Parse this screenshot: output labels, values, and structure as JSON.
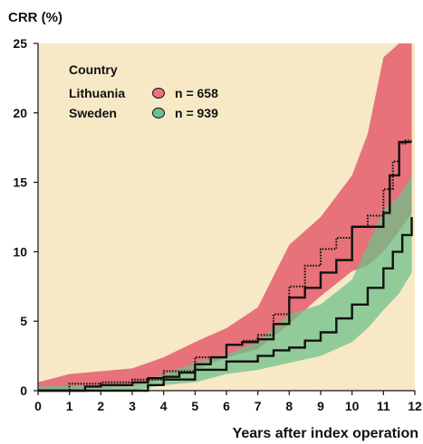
{
  "chart_data": {
    "type": "line",
    "title": "",
    "ylabel": "CRR (%)",
    "xlabel": "Years after index operation",
    "xlim": [
      0,
      12
    ],
    "ylim": [
      0,
      25
    ],
    "x_ticks": [
      0,
      1,
      2,
      3,
      4,
      5,
      6,
      7,
      8,
      9,
      10,
      11,
      12
    ],
    "y_ticks": [
      0,
      5,
      10,
      15,
      20,
      25
    ],
    "grid": false,
    "legend": {
      "title": "Country",
      "placement": "top-left",
      "entries": [
        {
          "label": "Lithuania",
          "n_label": "n = 658"
        },
        {
          "label": "Sweden",
          "n_label": "n = 939"
        }
      ]
    },
    "colors": {
      "background": "#f7e9c6",
      "lithuania_band": "#e8727a",
      "sweden_band": "#6fc08a",
      "overlap_band": "#8a8e6c",
      "line": "#111111"
    },
    "series": [
      {
        "name": "Lithuania",
        "line_style": "dotted",
        "estimate": [
          [
            0,
            0
          ],
          [
            1,
            0.5
          ],
          [
            2,
            0.6
          ],
          [
            3,
            0.8
          ],
          [
            4,
            1.4
          ],
          [
            5,
            2.4
          ],
          [
            6,
            3.3
          ],
          [
            6.5,
            3.6
          ],
          [
            7,
            4.0
          ],
          [
            7.5,
            5.5
          ],
          [
            8,
            7.5
          ],
          [
            8.5,
            9.0
          ],
          [
            9,
            10.2
          ],
          [
            9.5,
            11.0
          ],
          [
            10,
            11.8
          ],
          [
            10.5,
            12.6
          ],
          [
            11,
            14.5
          ],
          [
            11.3,
            16.5
          ],
          [
            11.5,
            17.8
          ],
          [
            11.7,
            18.0
          ],
          [
            11.9,
            18.0
          ]
        ],
        "lower": [
          [
            0,
            0
          ],
          [
            1,
            0.1
          ],
          [
            2,
            0.2
          ],
          [
            3,
            0.3
          ],
          [
            4,
            0.8
          ],
          [
            5,
            1.5
          ],
          [
            6,
            2.4
          ],
          [
            7,
            3.0
          ],
          [
            8,
            4.8
          ],
          [
            9,
            6.8
          ],
          [
            10,
            8.6
          ],
          [
            10.5,
            9.0
          ],
          [
            11,
            10.0
          ],
          [
            11.5,
            11.5
          ],
          [
            11.9,
            12.8
          ]
        ],
        "upper": [
          [
            0,
            0.6
          ],
          [
            1,
            1.2
          ],
          [
            2,
            1.4
          ],
          [
            3,
            1.6
          ],
          [
            4,
            2.4
          ],
          [
            5,
            3.5
          ],
          [
            6,
            4.5
          ],
          [
            7,
            6.0
          ],
          [
            8,
            10.5
          ],
          [
            9,
            12.5
          ],
          [
            10,
            15.5
          ],
          [
            10.5,
            18.5
          ],
          [
            11,
            24.0
          ],
          [
            11.5,
            25.0
          ],
          [
            11.9,
            25.0
          ]
        ]
      },
      {
        "name": "Sweden",
        "line_style": "solid",
        "estimate": [
          [
            0,
            0
          ],
          [
            1,
            0
          ],
          [
            2,
            0
          ],
          [
            3,
            0
          ],
          [
            3.5,
            0.4
          ],
          [
            4,
            0.8
          ],
          [
            5,
            1.5
          ],
          [
            6,
            2.1
          ],
          [
            7,
            2.5
          ],
          [
            7.5,
            2.9
          ],
          [
            8,
            3.1
          ],
          [
            8.5,
            3.6
          ],
          [
            9,
            4.2
          ],
          [
            9.5,
            5.2
          ],
          [
            10,
            6.2
          ],
          [
            10.5,
            7.4
          ],
          [
            11,
            8.8
          ],
          [
            11.3,
            10.0
          ],
          [
            11.6,
            11.2
          ],
          [
            11.9,
            12.5
          ]
        ],
        "lower": [
          [
            0,
            0
          ],
          [
            3,
            0
          ],
          [
            4,
            0.4
          ],
          [
            5,
            0.6
          ],
          [
            6,
            1.2
          ],
          [
            7,
            1.5
          ],
          [
            8,
            2.0
          ],
          [
            9,
            2.5
          ],
          [
            10,
            3.5
          ],
          [
            10.5,
            4.5
          ],
          [
            11,
            5.8
          ],
          [
            11.5,
            7.0
          ],
          [
            11.9,
            8.5
          ]
        ],
        "upper": [
          [
            0,
            0.3
          ],
          [
            3,
            0.4
          ],
          [
            4,
            1.2
          ],
          [
            5,
            2.0
          ],
          [
            6,
            2.6
          ],
          [
            7,
            3.5
          ],
          [
            8,
            5.5
          ],
          [
            9,
            6.2
          ],
          [
            10,
            8.0
          ],
          [
            10.5,
            10.5
          ],
          [
            11,
            13.0
          ],
          [
            11.5,
            14.0
          ],
          [
            11.9,
            15.5
          ]
        ]
      },
      {
        "name": "",
        "line_style": "solid",
        "estimate": [
          [
            0,
            0
          ],
          [
            1,
            0
          ],
          [
            1.5,
            0.3
          ],
          [
            2,
            0.4
          ],
          [
            3,
            0.6
          ],
          [
            3.5,
            0.9
          ],
          [
            4,
            1.0
          ],
          [
            4.5,
            1.3
          ],
          [
            5,
            1.9
          ],
          [
            5.5,
            2.4
          ],
          [
            6,
            3.3
          ],
          [
            6.5,
            3.5
          ],
          [
            7,
            3.7
          ],
          [
            7.5,
            4.8
          ],
          [
            8,
            6.7
          ],
          [
            8.5,
            7.4
          ],
          [
            9,
            8.5
          ],
          [
            9.5,
            9.4
          ],
          [
            10,
            11.8
          ],
          [
            10.5,
            11.8
          ],
          [
            11,
            12.8
          ],
          [
            11.2,
            15.5
          ],
          [
            11.5,
            17.9
          ],
          [
            11.9,
            17.9
          ]
        ]
      }
    ]
  }
}
